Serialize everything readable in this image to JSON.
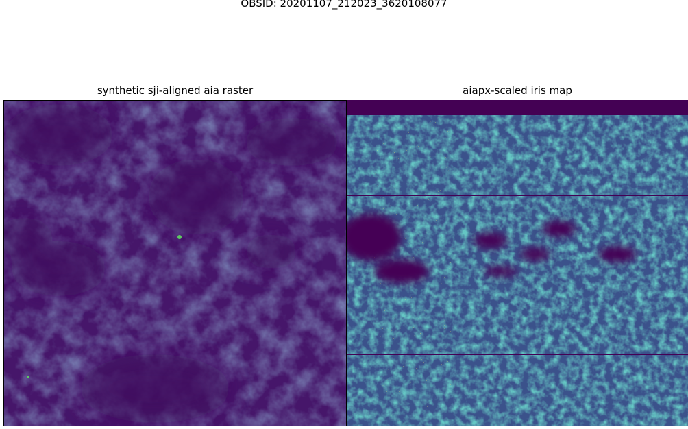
{
  "figure": {
    "suptitle": "OBSID: 20201107_212023_3620108077"
  },
  "panels": [
    {
      "title": "synthetic sji-aligned aia raster",
      "colormap": "viridis"
    },
    {
      "title": "aiapx-scaled iris map",
      "colormap": "viridis"
    }
  ],
  "colors": {
    "viridis_dark": "#440154",
    "viridis_purple": "#471365",
    "viridis_blue": "#3b528b",
    "viridis_teal": "#21918c",
    "viridis_green": "#5ec962",
    "viridis_yellow": "#fde725"
  }
}
